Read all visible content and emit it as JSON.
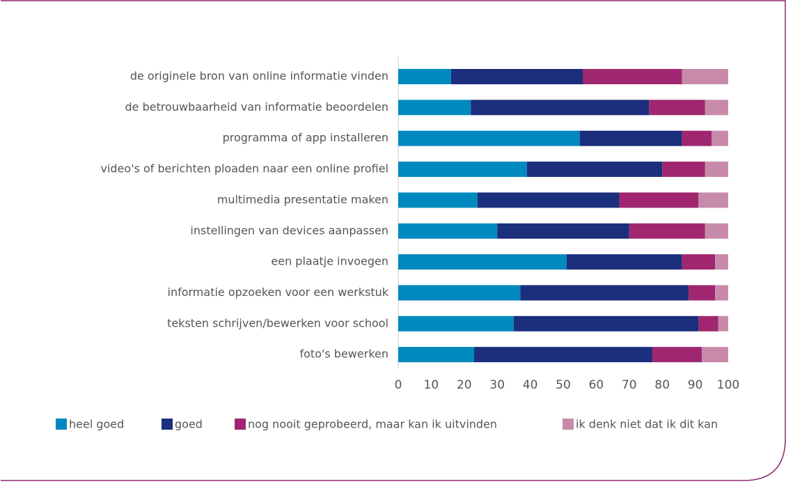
{
  "chart_data": {
    "type": "stacked-bar-horizontal",
    "categories": [
      "de originele bron van online informatie vinden",
      "de betrouwbaarheid van informatie beoordelen",
      "programma of app installeren",
      "video's of berichten ploaden naar een online profiel",
      "multimedia presentatie maken",
      "instellingen van devices aanpassen",
      "een plaatje invoegen",
      "informatie opzoeken voor een werkstuk",
      "teksten schrijven/bewerken voor school",
      "foto's bewerken"
    ],
    "series": [
      {
        "name": "heel goed",
        "color": "#0089bf",
        "values": [
          16,
          22,
          55,
          39,
          24,
          30,
          51,
          37,
          35,
          23
        ]
      },
      {
        "name": "goed",
        "color": "#1b2f7c",
        "values": [
          40,
          54,
          31,
          41,
          43,
          40,
          35,
          51,
          56,
          54
        ]
      },
      {
        "name": "nog nooit geprobeerd, maar kan ik uitvinden",
        "color": "#a0276f",
        "values": [
          30,
          17,
          9,
          13,
          24,
          23,
          10,
          8,
          6,
          15
        ]
      },
      {
        "name": "ik denk niet dat ik dit kan",
        "color": "#c88aab",
        "values": [
          14,
          7,
          5,
          7,
          9,
          7,
          4,
          4,
          3,
          8
        ]
      }
    ],
    "xlim": [
      0,
      100
    ],
    "xticks": [
      0,
      10,
      20,
      30,
      40,
      50,
      60,
      70,
      80,
      90,
      100
    ],
    "legend": "bottom"
  }
}
